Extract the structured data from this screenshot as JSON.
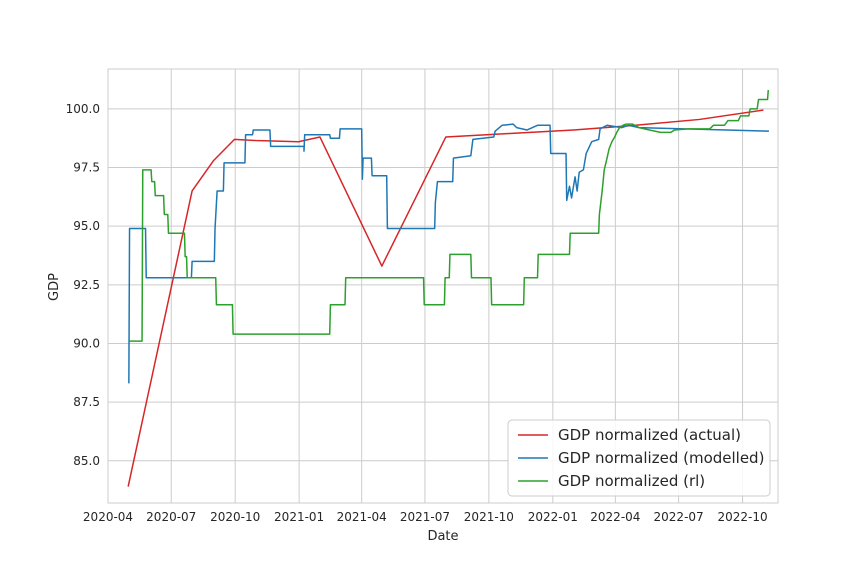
{
  "chart_data": {
    "type": "line",
    "title": "",
    "xlabel": "Date",
    "ylabel": "GDP",
    "xlim": [
      "2020-04-01",
      "2022-11-21"
    ],
    "ylim": [
      83.2,
      101.7
    ],
    "x_ticks": [
      "2020-04",
      "2020-07",
      "2020-10",
      "2021-01",
      "2021-04",
      "2021-07",
      "2021-10",
      "2022-01",
      "2022-04",
      "2022-07",
      "2022-10"
    ],
    "y_ticks": [
      85.0,
      87.5,
      90.0,
      92.5,
      95.0,
      97.5,
      100.0
    ],
    "y_tick_labels": [
      "85.0",
      "87.5",
      "90.0",
      "92.5",
      "95.0",
      "97.5",
      "100.0"
    ],
    "grid": true,
    "legend_position": "lower-right",
    "series": [
      {
        "name": "GDP normalized (actual)",
        "color": "#d62728",
        "points": [
          [
            "2020-04-30",
            83.9
          ],
          [
            "2020-07-31",
            96.5
          ],
          [
            "2020-08-31",
            97.8
          ],
          [
            "2020-09-30",
            98.7
          ],
          [
            "2020-10-31",
            98.65
          ],
          [
            "2020-12-31",
            98.6
          ],
          [
            "2021-01-31",
            98.8
          ],
          [
            "2021-04-30",
            93.3
          ],
          [
            "2021-07-31",
            98.8
          ],
          [
            "2021-10-31",
            98.95
          ],
          [
            "2022-01-31",
            99.1
          ],
          [
            "2022-04-30",
            99.3
          ],
          [
            "2022-07-31",
            99.55
          ],
          [
            "2022-10-31",
            99.95
          ]
        ]
      },
      {
        "name": "GDP normalized (modelled)",
        "color": "#1f77b4",
        "points": [
          [
            "2020-05-01",
            88.3
          ],
          [
            "2020-05-02",
            94.9
          ],
          [
            "2020-05-25",
            94.9
          ],
          [
            "2020-05-26",
            92.8
          ],
          [
            "2020-07-30",
            92.8
          ],
          [
            "2020-07-31",
            93.5
          ],
          [
            "2020-09-01",
            93.5
          ],
          [
            "2020-09-02",
            94.9
          ],
          [
            "2020-09-05",
            96.5
          ],
          [
            "2020-09-14",
            96.5
          ],
          [
            "2020-09-15",
            97.7
          ],
          [
            "2020-10-15",
            97.7
          ],
          [
            "2020-10-16",
            98.9
          ],
          [
            "2020-10-26",
            98.9
          ],
          [
            "2020-10-27",
            99.1
          ],
          [
            "2020-11-20",
            99.1
          ],
          [
            "2020-11-21",
            98.4
          ],
          [
            "2021-01-08",
            98.4
          ],
          [
            "2021-01-08",
            98.2
          ],
          [
            "2021-01-09",
            98.9
          ],
          [
            "2021-02-14",
            98.9
          ],
          [
            "2021-02-15",
            98.75
          ],
          [
            "2021-02-28",
            98.75
          ],
          [
            "2021-03-01",
            99.15
          ],
          [
            "2021-04-01",
            99.15
          ],
          [
            "2021-04-02",
            97.0
          ],
          [
            "2021-04-03",
            97.9
          ],
          [
            "2021-04-15",
            97.9
          ],
          [
            "2021-04-16",
            97.15
          ],
          [
            "2021-05-07",
            97.15
          ],
          [
            "2021-05-08",
            94.9
          ],
          [
            "2021-07-15",
            94.9
          ],
          [
            "2021-07-16",
            96.0
          ],
          [
            "2021-07-19",
            96.9
          ],
          [
            "2021-08-10",
            96.9
          ],
          [
            "2021-08-11",
            97.9
          ],
          [
            "2021-09-05",
            98.0
          ],
          [
            "2021-09-08",
            98.7
          ],
          [
            "2021-10-08",
            98.8
          ],
          [
            "2021-10-10",
            99.05
          ],
          [
            "2021-10-20",
            99.3
          ],
          [
            "2021-11-05",
            99.35
          ],
          [
            "2021-11-10",
            99.2
          ],
          [
            "2021-11-25",
            99.1
          ],
          [
            "2021-12-10",
            99.3
          ],
          [
            "2021-12-28",
            99.3
          ],
          [
            "2021-12-29",
            98.1
          ],
          [
            "2022-01-20",
            98.1
          ],
          [
            "2022-01-21",
            96.1
          ],
          [
            "2022-01-25",
            96.7
          ],
          [
            "2022-01-28",
            96.2
          ],
          [
            "2022-02-02",
            97.1
          ],
          [
            "2022-02-05",
            96.5
          ],
          [
            "2022-02-08",
            97.3
          ],
          [
            "2022-02-14",
            97.4
          ],
          [
            "2022-02-18",
            98.1
          ],
          [
            "2022-02-26",
            98.6
          ],
          [
            "2022-03-08",
            98.7
          ],
          [
            "2022-03-10",
            99.15
          ],
          [
            "2022-03-20",
            99.3
          ],
          [
            "2022-04-10",
            99.2
          ],
          [
            "2022-04-20",
            99.3
          ],
          [
            "2022-05-05",
            99.2
          ],
          [
            "2022-11-08",
            99.05
          ]
        ]
      },
      {
        "name": "GDP normalized (rl)",
        "color": "#2ca02c",
        "points": [
          [
            "2020-05-01",
            90.1
          ],
          [
            "2020-05-20",
            90.1
          ],
          [
            "2020-05-21",
            97.4
          ],
          [
            "2020-06-02",
            97.4
          ],
          [
            "2020-06-03",
            96.9
          ],
          [
            "2020-06-07",
            96.9
          ],
          [
            "2020-06-08",
            96.3
          ],
          [
            "2020-06-20",
            96.3
          ],
          [
            "2020-06-21",
            95.5
          ],
          [
            "2020-06-26",
            95.5
          ],
          [
            "2020-06-27",
            94.7
          ],
          [
            "2020-07-20",
            94.7
          ],
          [
            "2020-07-21",
            93.7
          ],
          [
            "2020-07-23",
            93.7
          ],
          [
            "2020-07-24",
            92.8
          ],
          [
            "2020-09-03",
            92.8
          ],
          [
            "2020-09-04",
            91.65
          ],
          [
            "2020-09-27",
            91.65
          ],
          [
            "2020-09-28",
            90.4
          ],
          [
            "2021-02-14",
            90.4
          ],
          [
            "2021-02-15",
            91.65
          ],
          [
            "2021-03-08",
            91.65
          ],
          [
            "2021-03-09",
            92.8
          ],
          [
            "2021-06-29",
            92.8
          ],
          [
            "2021-06-30",
            91.65
          ],
          [
            "2021-07-29",
            91.65
          ],
          [
            "2021-07-30",
            92.8
          ],
          [
            "2021-08-05",
            92.8
          ],
          [
            "2021-08-06",
            93.8
          ],
          [
            "2021-09-05",
            93.8
          ],
          [
            "2021-09-06",
            92.8
          ],
          [
            "2021-10-04",
            92.8
          ],
          [
            "2021-10-05",
            91.65
          ],
          [
            "2021-11-20",
            91.65
          ],
          [
            "2021-11-21",
            92.8
          ],
          [
            "2021-12-10",
            92.8
          ],
          [
            "2021-12-11",
            93.8
          ],
          [
            "2022-01-25",
            93.8
          ],
          [
            "2022-01-26",
            94.7
          ],
          [
            "2022-03-08",
            94.7
          ],
          [
            "2022-03-09",
            95.5
          ],
          [
            "2022-03-13",
            96.5
          ],
          [
            "2022-03-16",
            97.4
          ],
          [
            "2022-03-20",
            97.9
          ],
          [
            "2022-03-23",
            98.3
          ],
          [
            "2022-03-27",
            98.6
          ],
          [
            "2022-03-31",
            98.8
          ],
          [
            "2022-04-03",
            99.0
          ],
          [
            "2022-04-07",
            99.2
          ],
          [
            "2022-04-12",
            99.3
          ],
          [
            "2022-04-16",
            99.35
          ],
          [
            "2022-04-26",
            99.35
          ],
          [
            "2022-05-05",
            99.2
          ],
          [
            "2022-05-20",
            99.1
          ],
          [
            "2022-06-05",
            99.0
          ],
          [
            "2022-06-20",
            99.0
          ],
          [
            "2022-06-25",
            99.1
          ],
          [
            "2022-07-15",
            99.15
          ],
          [
            "2022-08-15",
            99.15
          ],
          [
            "2022-08-20",
            99.3
          ],
          [
            "2022-09-05",
            99.3
          ],
          [
            "2022-09-10",
            99.5
          ],
          [
            "2022-09-25",
            99.5
          ],
          [
            "2022-09-28",
            99.7
          ],
          [
            "2022-10-10",
            99.7
          ],
          [
            "2022-10-12",
            100.0
          ],
          [
            "2022-10-22",
            100.0
          ],
          [
            "2022-10-24",
            100.4
          ],
          [
            "2022-11-06",
            100.4
          ],
          [
            "2022-11-07",
            100.8
          ]
        ]
      }
    ]
  }
}
